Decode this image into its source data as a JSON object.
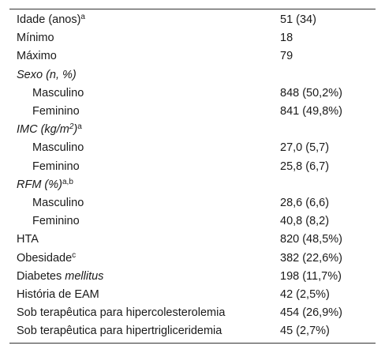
{
  "table": {
    "rows": [
      {
        "label": "Idade (anos)",
        "sup": "a",
        "value": "51 (34)"
      },
      {
        "label": "Mínimo",
        "value": "18"
      },
      {
        "label": "Máximo",
        "value": "79"
      },
      {
        "label": "Sexo (n, %)",
        "value": ""
      },
      {
        "label": "Masculino",
        "value": "848 (50,2%)"
      },
      {
        "label": "Feminino",
        "value": "841 (49,8%)"
      },
      {
        "label_pre": "IMC (kg/m",
        "label_sup2": "2",
        "label_post": ")",
        "sup": "a",
        "value": ""
      },
      {
        "label": "Masculino",
        "value": "27,0 (5,7)"
      },
      {
        "label": "Feminino",
        "value": "25,8 (6,7)"
      },
      {
        "label": "RFM (%)",
        "sup": "a,b",
        "value": ""
      },
      {
        "label": "Masculino",
        "value": "28,6 (6,6)"
      },
      {
        "label": "Feminino",
        "value": "40,8 (8,2)"
      },
      {
        "label": "HTA",
        "value": "820 (48,5%)"
      },
      {
        "label": "Obesidade",
        "sup": "c",
        "value": "382 (22,6%)"
      },
      {
        "label_pre": "Diabetes ",
        "label_italic": "mellitus",
        "value": "198 (11,7%)"
      },
      {
        "label": "História de EAM",
        "value": "42 (2,5%)"
      },
      {
        "label": "Sob terapêutica para hipercolesterolemia",
        "value": "454 (26,9%)"
      },
      {
        "label": "Sob terapêutica para hipertrigliceridemia",
        "value": "45 (2,7%)"
      }
    ]
  }
}
